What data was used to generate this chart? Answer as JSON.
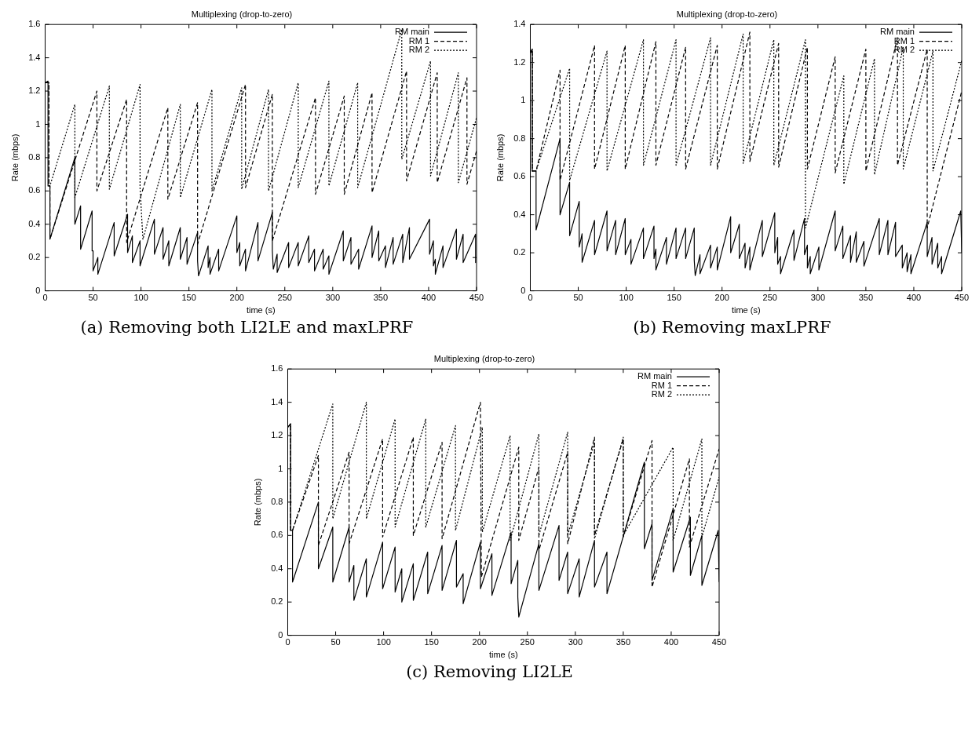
{
  "chart_data": [
    {
      "type": "line",
      "title": "Multiplexing (drop-to-zero)",
      "xlabel": "time (s)",
      "ylabel": "Rate (mbps)",
      "annotations": [
        "(a) Removing both LI2LE and maxLPRF"
      ],
      "xlim": [
        0,
        450
      ],
      "xticks": [
        0,
        50,
        100,
        150,
        200,
        250,
        300,
        350,
        400,
        450
      ],
      "ylim": [
        0,
        1.6
      ],
      "yticks": [
        0,
        0.2,
        0.4,
        0.6,
        0.8,
        1,
        1.2,
        1.4,
        1.6
      ],
      "grid": false,
      "legend": "top right",
      "marker": "none",
      "series": [
        {
          "name": "RM main",
          "color": "#000000",
          "line_style": "solid",
          "x": [
            0,
            3,
            3,
            5,
            5,
            31,
            31,
            37,
            37,
            49,
            49,
            50,
            50,
            55,
            55,
            72,
            72,
            86,
            86,
            91,
            91,
            99,
            99,
            114,
            114,
            123,
            123,
            129,
            129,
            141,
            141,
            148,
            148,
            159,
            159,
            160,
            170,
            170,
            172,
            172,
            181,
            181,
            200,
            200,
            203,
            203,
            209,
            209,
            222,
            222,
            237,
            237,
            238,
            242,
            242,
            254,
            254,
            264,
            264,
            275,
            275,
            281,
            281,
            290,
            290,
            296,
            296,
            311,
            311,
            319,
            319,
            327,
            327,
            341,
            341,
            348,
            348,
            355,
            355,
            363,
            363,
            373,
            373,
            380,
            380,
            401,
            401,
            405,
            405,
            407,
            407,
            415,
            415,
            429,
            429,
            436,
            436,
            449,
            449
          ],
          "values": [
            1.25,
            1.26,
            0.63,
            0.63,
            0.31,
            0.8,
            0.4,
            0.51,
            0.25,
            0.48,
            0.24,
            0.24,
            0.12,
            0.2,
            0.1,
            0.41,
            0.21,
            0.46,
            0.23,
            0.33,
            0.17,
            0.3,
            0.15,
            0.43,
            0.22,
            0.38,
            0.19,
            0.3,
            0.15,
            0.38,
            0.19,
            0.32,
            0.16,
            0.35,
            0.18,
            0.09,
            0.27,
            0.14,
            0.2,
            0.1,
            0.25,
            0.12,
            0.45,
            0.23,
            0.29,
            0.15,
            0.25,
            0.12,
            0.41,
            0.18,
            0.47,
            0.24,
            0.13,
            0.22,
            0.11,
            0.29,
            0.14,
            0.29,
            0.15,
            0.33,
            0.17,
            0.25,
            0.12,
            0.25,
            0.13,
            0.21,
            0.1,
            0.36,
            0.18,
            0.32,
            0.16,
            0.25,
            0.13,
            0.39,
            0.2,
            0.36,
            0.18,
            0.27,
            0.14,
            0.32,
            0.16,
            0.34,
            0.17,
            0.38,
            0.19,
            0.43,
            0.22,
            0.3,
            0.15,
            0.19,
            0.1,
            0.27,
            0.14,
            0.37,
            0.19,
            0.34,
            0.17,
            0.34,
            0.17
          ]
        },
        {
          "name": "RM 1",
          "color": "#000000",
          "line_style": "dashed",
          "x": [
            0,
            4,
            4,
            5,
            5,
            54,
            54,
            85,
            85,
            128,
            128,
            159,
            159,
            209,
            209,
            237,
            237,
            282,
            282,
            312,
            312,
            341,
            341,
            377,
            377,
            409,
            409,
            440,
            440,
            450
          ],
          "values": [
            1.25,
            1.25,
            0.63,
            0.63,
            0.31,
            1.2,
            0.6,
            1.15,
            0.29,
            1.1,
            0.55,
            1.13,
            0.28,
            1.24,
            0.62,
            1.18,
            0.3,
            1.16,
            0.58,
            1.17,
            0.58,
            1.19,
            0.59,
            1.32,
            0.66,
            1.31,
            0.65,
            1.28,
            0.64,
            0.84
          ]
        },
        {
          "name": "RM 2",
          "color": "#000000",
          "line_style": "dotted",
          "x": [
            0,
            4,
            4,
            5,
            31,
            31,
            67,
            67,
            99,
            99,
            102,
            141,
            141,
            174,
            174,
            205,
            205,
            233,
            233,
            264,
            264,
            296,
            296,
            326,
            326,
            372,
            372,
            402,
            402,
            431,
            431,
            450
          ],
          "values": [
            1.25,
            1.25,
            0.63,
            0.63,
            1.12,
            0.56,
            1.23,
            0.61,
            1.24,
            0.62,
            0.31,
            1.12,
            0.56,
            1.21,
            0.6,
            1.22,
            0.61,
            1.21,
            0.6,
            1.25,
            0.62,
            1.26,
            0.63,
            1.25,
            0.62,
            1.57,
            0.79,
            1.38,
            0.69,
            1.31,
            0.65,
            1.04
          ]
        }
      ]
    },
    {
      "type": "line",
      "title": "Multiplexing (drop-to-zero)",
      "xlabel": "time (s)",
      "ylabel": "Rate (mbps)",
      "annotations": [
        "(b) Removing maxLPRF"
      ],
      "xlim": [
        0,
        450
      ],
      "xticks": [
        0,
        50,
        100,
        150,
        200,
        250,
        300,
        350,
        400,
        450
      ],
      "ylim": [
        0,
        1.4
      ],
      "yticks": [
        0,
        0.2,
        0.4,
        0.6,
        0.8,
        1,
        1.2,
        1.4
      ],
      "grid": false,
      "legend": "top right",
      "marker": "none",
      "series": [
        {
          "name": "RM main",
          "color": "#000000",
          "line_style": "solid",
          "x": [
            0,
            2,
            2,
            6,
            6,
            31,
            31,
            41,
            41,
            51,
            51,
            54,
            54,
            67,
            67,
            80,
            80,
            89,
            89,
            99,
            99,
            105,
            105,
            118,
            118,
            129,
            129,
            131,
            131,
            142,
            142,
            152,
            152,
            162,
            162,
            171,
            171,
            172,
            177,
            177,
            188,
            188,
            195,
            195,
            209,
            209,
            218,
            218,
            224,
            224,
            229,
            229,
            242,
            242,
            255,
            255,
            258,
            258,
            261,
            261,
            275,
            275,
            286,
            286,
            289,
            289,
            292,
            292,
            301,
            301,
            318,
            318,
            326,
            326,
            334,
            334,
            340,
            340,
            348,
            348,
            364,
            364,
            373,
            373,
            381,
            381,
            388,
            388,
            393,
            393,
            397,
            397,
            414,
            414,
            419,
            419,
            425,
            425,
            429,
            429,
            449,
            450
          ],
          "values": [
            1.25,
            1.27,
            0.63,
            0.63,
            0.32,
            0.8,
            0.4,
            0.57,
            0.29,
            0.47,
            0.23,
            0.3,
            0.15,
            0.37,
            0.19,
            0.42,
            0.21,
            0.37,
            0.19,
            0.38,
            0.19,
            0.27,
            0.14,
            0.33,
            0.17,
            0.34,
            0.17,
            0.22,
            0.11,
            0.28,
            0.14,
            0.33,
            0.17,
            0.33,
            0.17,
            0.33,
            0.16,
            0.08,
            0.19,
            0.09,
            0.24,
            0.12,
            0.23,
            0.11,
            0.39,
            0.2,
            0.35,
            0.17,
            0.25,
            0.12,
            0.23,
            0.11,
            0.37,
            0.18,
            0.41,
            0.2,
            0.28,
            0.14,
            0.18,
            0.09,
            0.32,
            0.16,
            0.38,
            0.19,
            0.24,
            0.12,
            0.18,
            0.09,
            0.23,
            0.11,
            0.42,
            0.21,
            0.34,
            0.17,
            0.29,
            0.15,
            0.31,
            0.15,
            0.26,
            0.13,
            0.38,
            0.19,
            0.37,
            0.19,
            0.36,
            0.18,
            0.24,
            0.12,
            0.2,
            0.1,
            0.19,
            0.09,
            0.36,
            0.18,
            0.28,
            0.14,
            0.25,
            0.12,
            0.18,
            0.09,
            0.42,
            0.2
          ]
        },
        {
          "name": "RM 1",
          "color": "#000000",
          "line_style": "dashed",
          "x": [
            0,
            2,
            2,
            6,
            31,
            31,
            67,
            67,
            99,
            99,
            131,
            131,
            162,
            162,
            195,
            195,
            229,
            229,
            259,
            259,
            289,
            289,
            318,
            318,
            350,
            350,
            383,
            383,
            414,
            414,
            450
          ],
          "values": [
            1.25,
            1.27,
            0.63,
            0.63,
            1.16,
            0.58,
            1.29,
            0.64,
            1.29,
            0.64,
            1.31,
            0.66,
            1.28,
            0.64,
            1.29,
            0.64,
            1.36,
            0.68,
            1.3,
            0.65,
            1.28,
            0.64,
            1.23,
            0.62,
            1.27,
            0.63,
            1.33,
            0.66,
            1.27,
            0.33,
            1.05
          ]
        },
        {
          "name": "RM 2",
          "color": "#000000",
          "line_style": "dotted",
          "x": [
            0,
            2,
            2,
            6,
            41,
            41,
            80,
            80,
            118,
            118,
            152,
            152,
            188,
            188,
            222,
            222,
            254,
            254,
            287,
            287,
            327,
            327,
            359,
            359,
            389,
            389,
            420,
            420,
            450
          ],
          "values": [
            1.25,
            1.27,
            0.63,
            0.63,
            1.17,
            0.58,
            1.26,
            0.63,
            1.32,
            0.66,
            1.32,
            0.66,
            1.33,
            0.66,
            1.35,
            0.67,
            1.32,
            0.66,
            1.32,
            0.33,
            1.13,
            0.56,
            1.22,
            0.61,
            1.28,
            0.64,
            1.26,
            0.63,
            1.21
          ]
        }
      ]
    },
    {
      "type": "line",
      "title": "Multiplexing (drop-to-zero)",
      "xlabel": "time (s)",
      "ylabel": "Rate (mbps)",
      "annotations": [
        "(c) Removing LI2LE"
      ],
      "xlim": [
        0,
        450
      ],
      "xticks": [
        0,
        50,
        100,
        150,
        200,
        250,
        300,
        350,
        400,
        450
      ],
      "ylim": [
        0,
        1.6
      ],
      "yticks": [
        0,
        0.2,
        0.4,
        0.6,
        0.8,
        1,
        1.2,
        1.4,
        1.6
      ],
      "grid": false,
      "legend": "top right",
      "marker": "none",
      "series": [
        {
          "name": "RM main",
          "color": "#000000",
          "line_style": "solid",
          "x": [
            0,
            3,
            3,
            5,
            5,
            32,
            32,
            47,
            47,
            64,
            64,
            69,
            69,
            82,
            82,
            99,
            99,
            112,
            112,
            119,
            119,
            131,
            131,
            146,
            146,
            161,
            161,
            176,
            176,
            183,
            183,
            201,
            201,
            213,
            213,
            233,
            233,
            240,
            240,
            241,
            262,
            262,
            283,
            283,
            292,
            292,
            304,
            304,
            320,
            320,
            333,
            333,
            372,
            372,
            380,
            380,
            402,
            402,
            420,
            420,
            432,
            432,
            449,
            450
          ],
          "values": [
            1.25,
            1.27,
            0.63,
            0.63,
            0.32,
            0.8,
            0.4,
            0.65,
            0.32,
            0.65,
            0.32,
            0.42,
            0.21,
            0.46,
            0.23,
            0.56,
            0.28,
            0.53,
            0.26,
            0.4,
            0.2,
            0.43,
            0.21,
            0.5,
            0.25,
            0.54,
            0.27,
            0.57,
            0.29,
            0.37,
            0.19,
            0.56,
            0.28,
            0.49,
            0.24,
            0.62,
            0.31,
            0.45,
            0.23,
            0.11,
            0.55,
            0.27,
            0.66,
            0.33,
            0.5,
            0.25,
            0.46,
            0.23,
            0.57,
            0.29,
            0.5,
            0.25,
            1.04,
            0.52,
            0.67,
            0.33,
            0.76,
            0.38,
            0.71,
            0.36,
            0.6,
            0.3,
            0.63,
            0.32
          ]
        },
        {
          "name": "RM 1",
          "color": "#000000",
          "line_style": "dashed",
          "x": [
            0,
            3,
            3,
            5,
            32,
            32,
            64,
            64,
            99,
            99,
            131,
            131,
            161,
            161,
            201,
            202,
            241,
            241,
            262,
            262,
            292,
            292,
            320,
            320,
            350,
            350,
            380,
            380,
            419,
            419,
            450
          ],
          "values": [
            1.25,
            1.27,
            0.63,
            0.63,
            1.08,
            0.54,
            1.1,
            0.55,
            1.18,
            0.59,
            1.19,
            0.6,
            1.16,
            0.58,
            1.4,
            0.35,
            1.13,
            0.57,
            1.01,
            0.51,
            1.1,
            0.55,
            1.19,
            0.6,
            1.18,
            0.59,
            1.17,
            0.29,
            1.06,
            0.53,
            1.12
          ]
        },
        {
          "name": "RM 2",
          "color": "#000000",
          "line_style": "dotted",
          "x": [
            0,
            3,
            3,
            5,
            47,
            47,
            82,
            82,
            112,
            112,
            144,
            144,
            175,
            175,
            203,
            203,
            232,
            232,
            262,
            262,
            292,
            292,
            320,
            320,
            350,
            350,
            402,
            402,
            432,
            432,
            450
          ],
          "values": [
            1.25,
            1.27,
            0.63,
            0.63,
            1.39,
            0.7,
            1.4,
            0.7,
            1.3,
            0.65,
            1.3,
            0.65,
            1.26,
            0.63,
            1.25,
            0.62,
            1.2,
            0.57,
            1.21,
            0.6,
            1.22,
            0.6,
            1.16,
            0.58,
            1.19,
            0.6,
            1.13,
            0.57,
            1.18,
            0.59,
            0.95
          ]
        }
      ]
    }
  ]
}
